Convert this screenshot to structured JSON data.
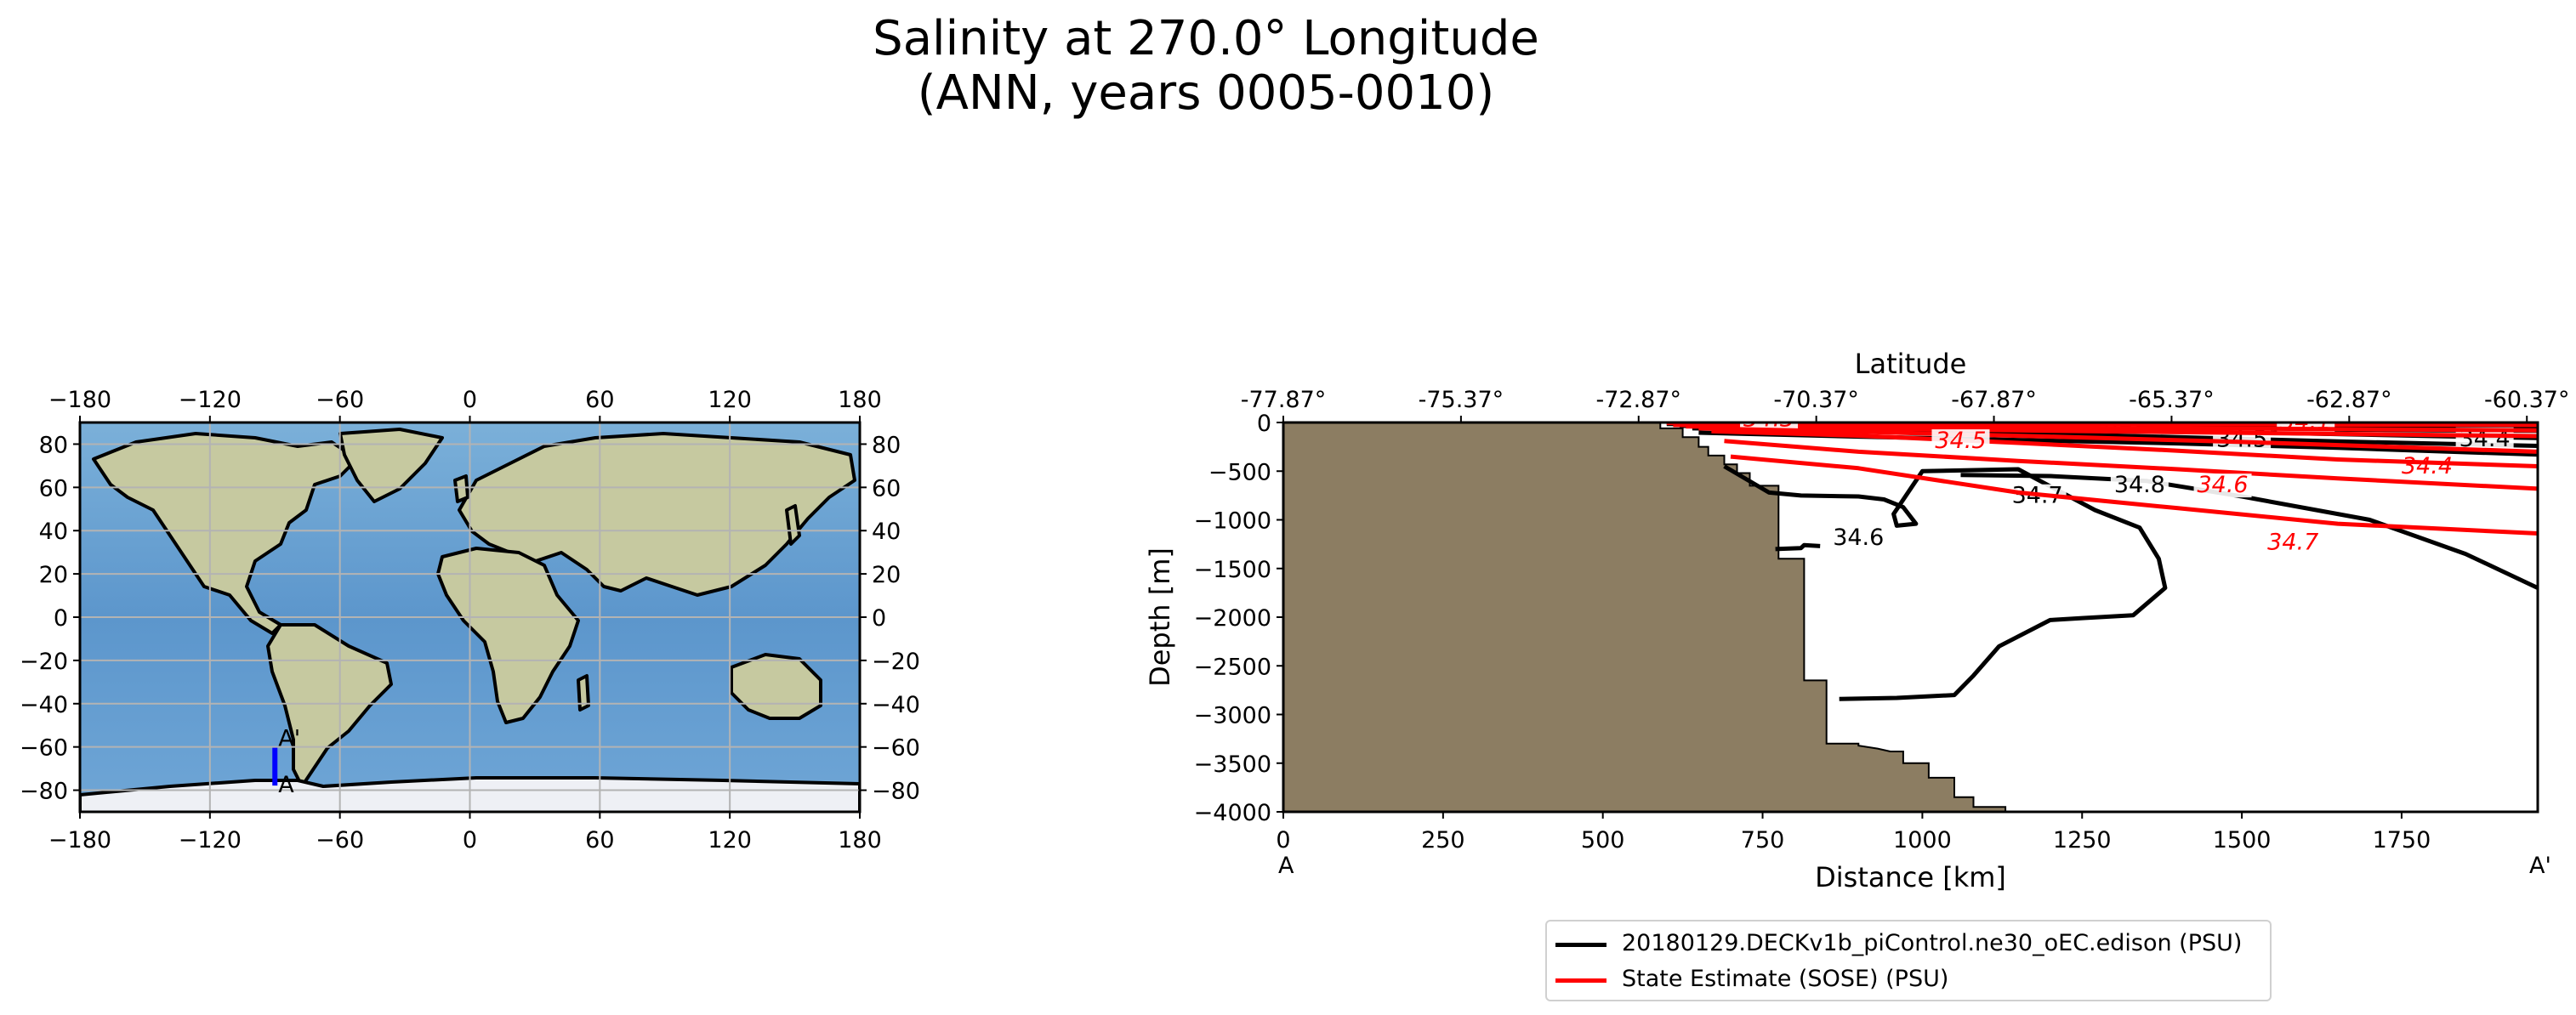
{
  "chart_data": {
    "type": "contour",
    "title": "Salinity at 270.0° Longitude\n(ANN, years 0005-0010)",
    "map_panel": {
      "x_ticks": [
        "−180",
        "−120",
        "−60",
        "0",
        "60",
        "120",
        "180"
      ],
      "x_tick_values": [
        -180,
        -120,
        -60,
        0,
        60,
        120,
        180
      ],
      "y_ticks": [
        "−80",
        "−60",
        "−40",
        "−20",
        "0",
        "20",
        "40",
        "60",
        "80"
      ],
      "y_tick_values": [
        -80,
        -60,
        -40,
        -20,
        0,
        20,
        40,
        60,
        80
      ],
      "xlim": [
        -180,
        180
      ],
      "ylim": [
        -90,
        90
      ],
      "transect": {
        "lon": -90,
        "lat_start": -77.87,
        "lat_end": -60.37,
        "label_start": "A",
        "label_end": "A'",
        "color": "#0000ff"
      },
      "grid": true
    },
    "section_panel": {
      "xlabel": "Distance [km]",
      "ylabel": "Depth [m]",
      "top_axis_label": "Latitude",
      "x_ticks": [
        "0",
        "250",
        "500",
        "750",
        "1000",
        "1250",
        "1500",
        "1750"
      ],
      "x_tick_values": [
        0,
        250,
        500,
        750,
        1000,
        1250,
        1500,
        1750
      ],
      "xlim": [
        0,
        1963
      ],
      "y_ticks": [
        "0",
        "−500",
        "−1000",
        "−1500",
        "−2000",
        "−2500",
        "−3000",
        "−3500",
        "−4000"
      ],
      "y_tick_values": [
        0,
        -500,
        -1000,
        -1500,
        -2000,
        -2500,
        -3000,
        -3500,
        -4000
      ],
      "ylim": [
        -4000,
        0
      ],
      "top_ticks": [
        "-77.87°",
        "-75.37°",
        "-72.87°",
        "-70.37°",
        "-67.87°",
        "-65.37°",
        "-62.87°",
        "-60.37°"
      ],
      "top_tick_values": [
        0,
        278,
        556,
        834,
        1112,
        1390,
        1668,
        1946
      ],
      "endpoint_labels": [
        "A",
        "A'"
      ],
      "land_color": "#8c7d62",
      "bathymetry": [
        [
          0,
          0
        ],
        [
          590,
          0
        ],
        [
          590,
          -60
        ],
        [
          625,
          -60
        ],
        [
          625,
          -150
        ],
        [
          650,
          -150
        ],
        [
          650,
          -250
        ],
        [
          665,
          -250
        ],
        [
          665,
          -340
        ],
        [
          690,
          -340
        ],
        [
          690,
          -430
        ],
        [
          710,
          -430
        ],
        [
          710,
          -520
        ],
        [
          730,
          -520
        ],
        [
          730,
          -650
        ],
        [
          775,
          -650
        ],
        [
          775,
          -1400
        ],
        [
          815,
          -1400
        ],
        [
          815,
          -2650
        ],
        [
          850,
          -2650
        ],
        [
          850,
          -3300
        ],
        [
          900,
          -3300
        ],
        [
          900,
          -3320
        ],
        [
          930,
          -3350
        ],
        [
          950,
          -3380
        ],
        [
          970,
          -3380
        ],
        [
          970,
          -3500
        ],
        [
          1010,
          -3500
        ],
        [
          1010,
          -3650
        ],
        [
          1050,
          -3650
        ],
        [
          1050,
          -3850
        ],
        [
          1080,
          -3850
        ],
        [
          1080,
          -3950
        ],
        [
          1130,
          -3950
        ],
        [
          1130,
          -4000
        ],
        [
          0,
          -4000
        ]
      ],
      "series": [
        {
          "name": "20180129.DECKv1b_piControl.ne30_oEC.edison (PSU)",
          "color": "#000000",
          "contours": [
            {
              "level": "34.1",
              "points": [
                [
                  1550,
                  -70
                ],
                [
                  1700,
                  -75
                ],
                [
                  1800,
                  -80
                ],
                [
                  1963,
                  -85
                ]
              ]
            },
            {
              "level": "34.2",
              "points": [
                [
                  600,
                  -15
                ],
                [
                  900,
                  -15
                ],
                [
                  1150,
                  -20
                ],
                [
                  1300,
                  -30
                ],
                [
                  1500,
                  -40
                ],
                [
                  1750,
                  -55
                ],
                [
                  1963,
                  -60
                ]
              ],
              "label_at": [
                1290,
                -30
              ]
            },
            {
              "level": "34.3",
              "points": [
                [
                  620,
                  -35
                ],
                [
                  850,
                  -40
                ],
                [
                  1050,
                  -50
                ],
                [
                  1300,
                  -75
                ],
                [
                  1500,
                  -100
                ],
                [
                  1800,
                  -140
                ],
                [
                  1963,
                  -160
                ]
              ],
              "label_at": [
                1050,
                -55
              ]
            },
            {
              "level": "34.4",
              "points": [
                [
                  640,
                  -60
                ],
                [
                  900,
                  -80
                ],
                [
                  1150,
                  -110
                ],
                [
                  1400,
                  -150
                ],
                [
                  1650,
                  -195
                ],
                [
                  1963,
                  -240
                ]
              ],
              "label_at": [
                1880,
                -225
              ]
            },
            {
              "level": "34.5",
              "points": [
                [
                  650,
                  -105
                ],
                [
                  900,
                  -145
                ],
                [
                  1150,
                  -180
                ],
                [
                  1400,
                  -215
                ],
                [
                  1650,
                  -260
                ],
                [
                  1963,
                  -330
                ]
              ],
              "label_at": [
                1500,
                -230
              ]
            },
            {
              "level": "34.6",
              "points": [
                [
                  770,
                  -1300
                ],
                [
                  810,
                  -1290
                ],
                [
                  815,
                  -1260
                ],
                [
                  840,
                  -1270
                ]
              ],
              "label_at": [
                900,
                -1240
              ]
            },
            {
              "level": "34.7",
              "points": [
                [
                  690,
                  -450
                ],
                [
                  760,
                  -720
                ],
                [
                  810,
                  -750
                ],
                [
                  900,
                  -760
                ],
                [
                  940,
                  -790
                ],
                [
                  970,
                  -870
                ],
                [
                  990,
                  -1040
                ],
                [
                  960,
                  -1060
                ],
                [
                  955,
                  -940
                ],
                [
                  1000,
                  -500
                ],
                [
                  1150,
                  -480
                ],
                [
                  1230,
                  -760
                ],
                [
                  1270,
                  -900
                ],
                [
                  1340,
                  -1080
                ],
                [
                  1370,
                  -1400
                ],
                [
                  1380,
                  -1700
                ],
                [
                  1330,
                  -1980
                ],
                [
                  1250,
                  -2010
                ],
                [
                  1200,
                  -2030
                ],
                [
                  1120,
                  -2300
                ],
                [
                  1080,
                  -2600
                ],
                [
                  1050,
                  -2800
                ],
                [
                  960,
                  -2830
                ],
                [
                  870,
                  -2840
                ]
              ],
              "label_at": [
                1180,
                -810
              ]
            },
            {
              "level": "34.8",
              "points": [
                [
                  1060,
                  -540
                ],
                [
                  1200,
                  -550
                ],
                [
                  1350,
                  -600
                ],
                [
                  1500,
                  -760
                ],
                [
                  1700,
                  -1000
                ],
                [
                  1850,
                  -1350
                ],
                [
                  1963,
                  -1700
                ]
              ],
              "label_at": [
                1340,
                -700
              ]
            }
          ]
        },
        {
          "name": "State Estimate (SOSE) (PSU)",
          "color": "#ff0000",
          "contours": [
            {
              "level": "34.1",
              "points": [
                [
                  600,
                  -5
                ],
                [
                  900,
                  -10
                ],
                [
                  1200,
                  -15
                ],
                [
                  1550,
                  -20
                ],
                [
                  1963,
                  -25
                ]
              ],
              "label_at": [
                1600,
                -50
              ]
            },
            {
              "level": "34.2",
              "points": [
                [
                  610,
                  -25
                ],
                [
                  900,
                  -40
                ],
                [
                  1200,
                  -55
                ],
                [
                  1550,
                  -65
                ],
                [
                  1963,
                  -80
                ]
              ]
            },
            {
              "level": "34.3",
              "points": [
                [
                  630,
                  -40
                ],
                [
                  900,
                  -60
                ],
                [
                  1200,
                  -85
                ],
                [
                  1550,
                  -110
                ],
                [
                  1963,
                  -140
                ]
              ],
              "label_at": [
                760,
                -20
              ]
            },
            {
              "level": "34.4",
              "points": [
                [
                  650,
                  -60
                ],
                [
                  900,
                  -95
                ],
                [
                  1200,
                  -145
                ],
                [
                  1500,
                  -200
                ],
                [
                  1800,
                  -265
                ],
                [
                  1963,
                  -300
                ]
              ],
              "label_at": [
                1790,
                -505
              ]
            },
            {
              "level": "34.5",
              "points": [
                [
                  670,
                  -90
                ],
                [
                  900,
                  -135
                ],
                [
                  1150,
                  -210
                ],
                [
                  1400,
                  -290
                ],
                [
                  1650,
                  -380
                ],
                [
                  1963,
                  -450
                ]
              ],
              "label_at": [
                1060,
                -245
              ]
            },
            {
              "level": "34.6",
              "points": [
                [
                  690,
                  -190
                ],
                [
                  900,
                  -300
                ],
                [
                  1150,
                  -395
                ],
                [
                  1400,
                  -480
                ],
                [
                  1650,
                  -575
                ],
                [
                  1963,
                  -680
                ]
              ],
              "label_at": [
                1470,
                -700
              ]
            },
            {
              "level": "34.7",
              "points": [
                [
                  700,
                  -350
                ],
                [
                  900,
                  -470
                ],
                [
                  1150,
                  -720
                ],
                [
                  1400,
                  -880
                ],
                [
                  1650,
                  -1040
                ],
                [
                  1963,
                  -1140
                ]
              ],
              "label_at": [
                1580,
                -1290
              ]
            }
          ]
        }
      ],
      "legend_position": "below"
    }
  }
}
